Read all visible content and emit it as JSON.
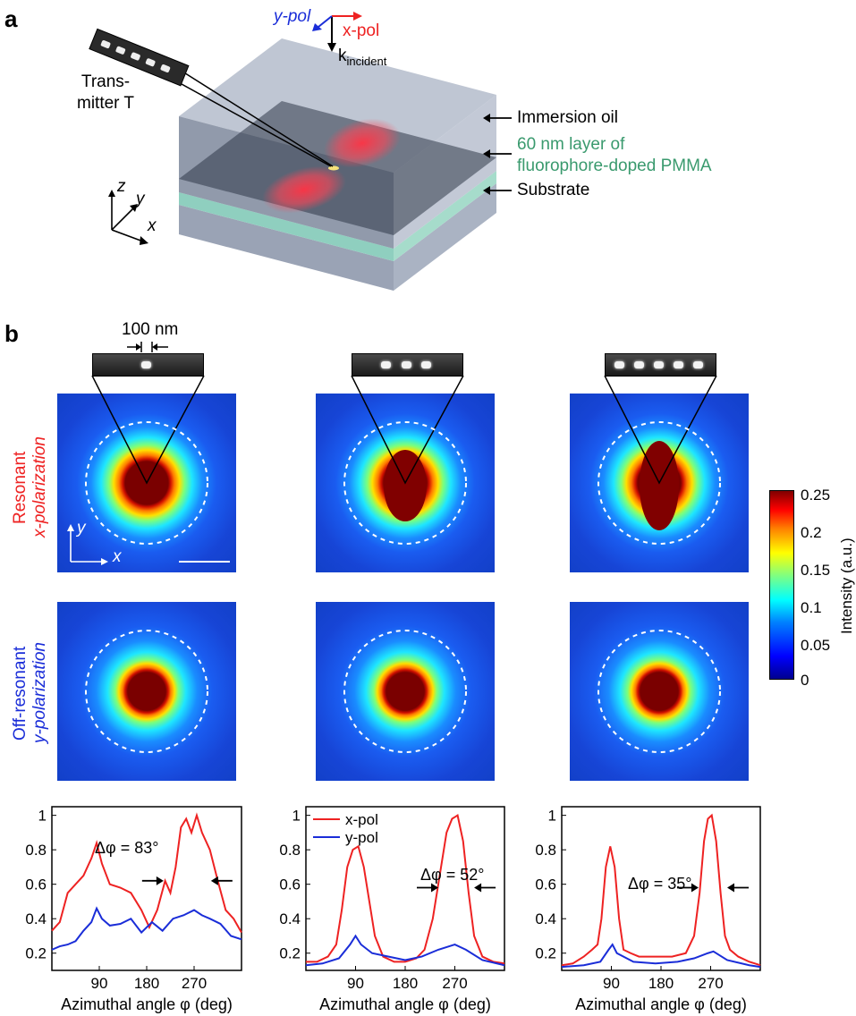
{
  "panel_a": {
    "letter": "a",
    "ypol": "y-pol",
    "xpol": "x-pol",
    "k_main": "k",
    "k_sub": "incident",
    "transmitter": [
      "Trans-",
      "mitter T"
    ],
    "immersion": "Immersion oil",
    "layer_line1": "60 nm layer of",
    "layer_line2": "fluorophore-doped PMMA",
    "substrate": "Substrate",
    "axis_z": "z",
    "axis_y": "y",
    "axis_x": "x"
  },
  "panel_b": {
    "letter": "b",
    "scale": "100 nm",
    "row1_line1": "Resonant",
    "row1_line2": "x-polarization",
    "row2_line1": "Off-resonant",
    "row2_line2": "y-polarization",
    "axis_y": "y",
    "axis_x": "x",
    "colorbar_label": "Intensity (a.u.)",
    "colorbar_ticks": [
      "0.25",
      "0.2",
      "0.15",
      "0.1",
      "0.05",
      "0"
    ]
  },
  "colors": {
    "x_pol": "#ee2222",
    "y_pol": "#1a2dd8",
    "layer": "#3a9a6e"
  },
  "chart_data": [
    {
      "type": "line",
      "annotation": "Δφ = 83°",
      "xlabel": "Azimuthal angle φ (deg)",
      "xticks": [
        90,
        180,
        270
      ],
      "xlim": [
        0,
        360
      ],
      "yticks": [
        0.2,
        0.4,
        0.6,
        0.8,
        1
      ],
      "ylim": [
        0.1,
        1.05
      ],
      "series": [
        {
          "color": "#ee2222",
          "x": [
            0,
            15,
            30,
            45,
            60,
            75,
            85,
            95,
            110,
            130,
            150,
            170,
            185,
            200,
            215,
            225,
            235,
            245,
            255,
            265,
            275,
            285,
            300,
            315,
            330,
            345,
            360
          ],
          "values": [
            0.33,
            0.38,
            0.55,
            0.6,
            0.65,
            0.75,
            0.84,
            0.72,
            0.6,
            0.58,
            0.55,
            0.45,
            0.35,
            0.45,
            0.62,
            0.55,
            0.7,
            0.93,
            0.98,
            0.9,
            1.0,
            0.9,
            0.8,
            0.62,
            0.45,
            0.4,
            0.32
          ]
        },
        {
          "color": "#1a2dd8",
          "x": [
            0,
            15,
            30,
            45,
            60,
            75,
            85,
            95,
            110,
            130,
            150,
            170,
            190,
            210,
            230,
            250,
            270,
            285,
            300,
            320,
            340,
            360
          ],
          "values": [
            0.22,
            0.24,
            0.25,
            0.27,
            0.33,
            0.38,
            0.46,
            0.4,
            0.36,
            0.37,
            0.4,
            0.32,
            0.38,
            0.33,
            0.4,
            0.42,
            0.45,
            0.42,
            0.4,
            0.37,
            0.3,
            0.28
          ]
        }
      ],
      "arrows": [
        {
          "x": 212,
          "y": 0.62
        },
        {
          "x": 302,
          "y": 0.62
        }
      ]
    },
    {
      "type": "line",
      "legend": [
        "x-pol",
        "y-pol"
      ],
      "annotation": "Δφ = 52°",
      "xlabel": "Azimuthal angle φ (deg)",
      "xticks": [
        90,
        180,
        270
      ],
      "xlim": [
        0,
        360
      ],
      "yticks": [
        0.2,
        0.4,
        0.6,
        0.8,
        1
      ],
      "ylim": [
        0.1,
        1.05
      ],
      "series": [
        {
          "name": "x-pol",
          "color": "#ee2222",
          "x": [
            0,
            20,
            40,
            55,
            65,
            75,
            85,
            95,
            105,
            115,
            125,
            140,
            160,
            180,
            200,
            215,
            230,
            245,
            255,
            265,
            275,
            285,
            295,
            305,
            320,
            340,
            360
          ],
          "values": [
            0.15,
            0.15,
            0.18,
            0.25,
            0.45,
            0.7,
            0.8,
            0.82,
            0.7,
            0.5,
            0.3,
            0.18,
            0.15,
            0.15,
            0.17,
            0.22,
            0.4,
            0.7,
            0.9,
            0.98,
            1.0,
            0.85,
            0.55,
            0.3,
            0.18,
            0.15,
            0.14
          ]
        },
        {
          "name": "y-pol",
          "color": "#1a2dd8",
          "x": [
            0,
            30,
            60,
            80,
            90,
            100,
            120,
            150,
            180,
            210,
            240,
            270,
            290,
            320,
            360
          ],
          "values": [
            0.13,
            0.14,
            0.17,
            0.25,
            0.3,
            0.25,
            0.2,
            0.18,
            0.16,
            0.18,
            0.22,
            0.25,
            0.22,
            0.16,
            0.13
          ]
        }
      ],
      "arrows": [
        {
          "x": 240,
          "y": 0.58
        },
        {
          "x": 305,
          "y": 0.58
        }
      ]
    },
    {
      "type": "line",
      "annotation": "Δφ = 35°",
      "xlabel": "Azimuthal angle φ (deg)",
      "xticks": [
        90,
        180,
        270
      ],
      "xlim": [
        0,
        360
      ],
      "yticks": [
        0.2,
        0.4,
        0.6,
        0.8,
        1
      ],
      "ylim": [
        0.1,
        1.05
      ],
      "series": [
        {
          "color": "#ee2222",
          "x": [
            0,
            20,
            40,
            55,
            65,
            72,
            80,
            88,
            96,
            104,
            112,
            125,
            140,
            170,
            200,
            225,
            240,
            250,
            258,
            265,
            272,
            280,
            288,
            296,
            305,
            320,
            340,
            360
          ],
          "values": [
            0.13,
            0.14,
            0.18,
            0.22,
            0.25,
            0.4,
            0.7,
            0.82,
            0.7,
            0.4,
            0.22,
            0.2,
            0.18,
            0.18,
            0.18,
            0.2,
            0.3,
            0.55,
            0.85,
            0.98,
            1.0,
            0.85,
            0.55,
            0.3,
            0.22,
            0.18,
            0.15,
            0.13
          ]
        },
        {
          "color": "#1a2dd8",
          "x": [
            0,
            40,
            70,
            85,
            92,
            100,
            130,
            170,
            210,
            240,
            265,
            275,
            300,
            340,
            360
          ],
          "values": [
            0.12,
            0.13,
            0.15,
            0.22,
            0.25,
            0.2,
            0.15,
            0.14,
            0.15,
            0.17,
            0.2,
            0.21,
            0.16,
            0.13,
            0.12
          ]
        }
      ],
      "arrows": [
        {
          "x": 248,
          "y": 0.58
        },
        {
          "x": 300,
          "y": 0.58
        }
      ]
    }
  ]
}
